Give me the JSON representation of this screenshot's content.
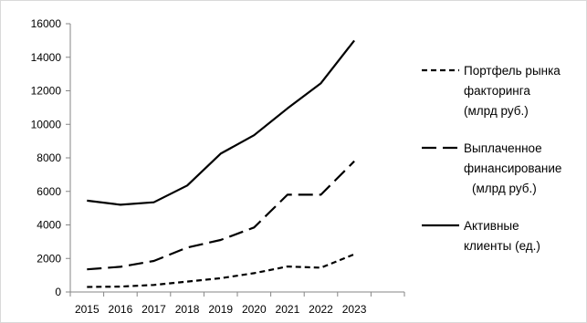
{
  "chart_data": {
    "type": "line",
    "title": "",
    "xlabel": "",
    "ylabel": "",
    "x": [
      "2015",
      "2016",
      "2017",
      "2018",
      "2019",
      "2020",
      "2021",
      "2022",
      "2023"
    ],
    "ylim": [
      0,
      16000
    ],
    "yticks": [
      "0",
      "2000",
      "4000",
      "6000",
      "8000",
      "10000",
      "12000",
      "14000",
      "16000"
    ],
    "grid": false,
    "legend_position": "right",
    "series": [
      {
        "name": "Портфель рынка факторинга (млрд руб.)",
        "legend_lines": [
          "Портфель рынка",
          "факторинга",
          "(млрд руб.)"
        ],
        "dash": "short-dash",
        "values": [
          300,
          320,
          420,
          620,
          820,
          1120,
          1520,
          1450,
          2250
        ]
      },
      {
        "name": "Выплаченное финансирование (млрд руб.)",
        "legend_lines": [
          "Выплаченное",
          "финансирование",
          "(млрд руб.)"
        ],
        "dash": "long-dash",
        "values": [
          1350,
          1500,
          1850,
          2650,
          3100,
          3850,
          5800,
          5800,
          7800
        ]
      },
      {
        "name": "Активные клиенты (ед.)",
        "legend_lines": [
          "Активные",
          "клиенты (ед.)"
        ],
        "dash": "solid",
        "values": [
          5450,
          5200,
          5350,
          6350,
          8250,
          9350,
          10950,
          12450,
          15000
        ]
      }
    ]
  }
}
